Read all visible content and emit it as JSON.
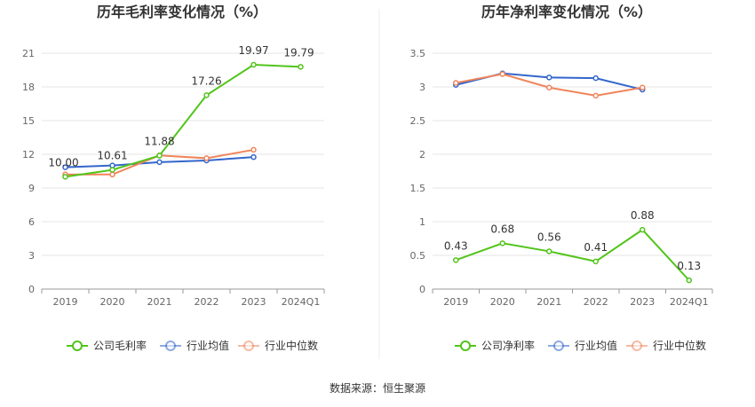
{
  "source_label": "数据来源：恒生聚源",
  "chart_data": [
    {
      "type": "line",
      "title": "历年毛利率变化情况（%）",
      "categories": [
        "2019",
        "2020",
        "2021",
        "2022",
        "2023",
        "2024Q1"
      ],
      "ylim": [
        0,
        21
      ],
      "yticks": [
        0,
        3,
        6,
        9,
        12,
        15,
        18,
        21
      ],
      "grid": true,
      "legend_position": "bottom",
      "series": [
        {
          "name": "公司毛利率",
          "color": "#52c41a",
          "values": [
            10.0,
            10.61,
            11.88,
            17.26,
            19.97,
            19.79
          ],
          "labels": [
            "10.00",
            "10.61",
            "11.88",
            "17.26",
            "19.97",
            "19.79"
          ]
        },
        {
          "name": "行业均值",
          "color": "#3366cc",
          "values": [
            10.85,
            11.0,
            11.3,
            11.45,
            11.75,
            null
          ]
        },
        {
          "name": "行业中位数",
          "color": "#f0845a",
          "values": [
            10.2,
            10.2,
            11.9,
            11.65,
            12.4,
            null
          ]
        }
      ]
    },
    {
      "type": "line",
      "title": "历年净利率变化情况（%）",
      "categories": [
        "2019",
        "2020",
        "2021",
        "2022",
        "2023",
        "2024Q1"
      ],
      "ylim": [
        0,
        3.5
      ],
      "yticks": [
        "0",
        "0.5",
        "1",
        "1.5",
        "2",
        "2.5",
        "3",
        "3.5"
      ],
      "grid": true,
      "legend_position": "bottom",
      "series": [
        {
          "name": "公司净利率",
          "color": "#52c41a",
          "values": [
            0.43,
            0.68,
            0.56,
            0.41,
            0.88,
            0.13
          ],
          "labels": [
            "0.43",
            "0.68",
            "0.56",
            "0.41",
            "0.88",
            "0.13"
          ]
        },
        {
          "name": "行业均值",
          "color": "#3366cc",
          "values": [
            3.03,
            3.2,
            3.14,
            3.13,
            2.96,
            null
          ]
        },
        {
          "name": "行业中位数",
          "color": "#f0845a",
          "values": [
            3.06,
            3.19,
            2.99,
            2.87,
            2.99,
            null
          ]
        }
      ]
    }
  ]
}
